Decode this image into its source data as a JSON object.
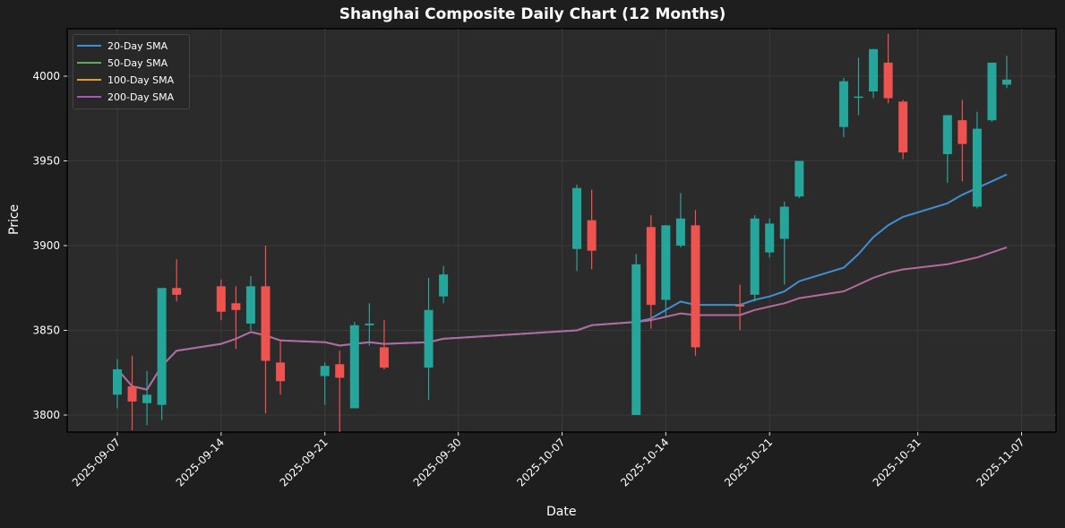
{
  "title": "Shanghai Composite Daily Chart (12 Months)",
  "axes": {
    "xlabel": "Date",
    "ylabel": "Price"
  },
  "legend": [
    {
      "label": "20-Day SMA",
      "color": "#3f8fd2"
    },
    {
      "label": "50-Day SMA",
      "color": "#5cab5f"
    },
    {
      "label": "100-Day SMA",
      "color": "#e59a2f"
    },
    {
      "label": "200-Day SMA",
      "color": "#a855c0"
    }
  ],
  "colors": {
    "up": "#26a69a",
    "down": "#ef5350",
    "background": "#1e1e1e",
    "plot_bg": "#2b2b2b",
    "grid": "#3a3a3a",
    "sma_overlap": "#b56a9e"
  },
  "chart_data": {
    "type": "candlestick",
    "title": "Shanghai Composite Daily Chart (12 Months)",
    "xlabel": "Date",
    "ylabel": "Price",
    "ylim": [
      3790,
      4026
    ],
    "xlim": [
      "2025-09-04",
      "2025-11-09"
    ],
    "yticks": [
      3800,
      3850,
      3900,
      3950,
      4000
    ],
    "xticks": [
      "2025-09-07",
      "2025-09-14",
      "2025-09-21",
      "2025-09-30",
      "2025-10-07",
      "2025-10-14",
      "2025-10-21",
      "2025-10-31",
      "2025-11-07"
    ],
    "grid": true,
    "legend_position": "upper left",
    "candles": [
      {
        "date": "2025-09-07",
        "open": 3812,
        "high": 3833,
        "low": 3804,
        "close": 3827
      },
      {
        "date": "2025-09-08",
        "open": 3817,
        "high": 3835,
        "low": 3791,
        "close": 3808
      },
      {
        "date": "2025-09-09",
        "open": 3807,
        "high": 3826,
        "low": 3794,
        "close": 3812
      },
      {
        "date": "2025-09-10",
        "open": 3806,
        "high": 3812,
        "low": 3797,
        "close": 3875
      },
      {
        "date": "2025-09-11",
        "open": 3875,
        "high": 3892,
        "low": 3867,
        "close": 3871
      },
      {
        "date": "2025-09-14",
        "open": 3876,
        "high": 3880,
        "low": 3856,
        "close": 3861
      },
      {
        "date": "2025-09-15",
        "open": 3866,
        "high": 3876,
        "low": 3839,
        "close": 3862
      },
      {
        "date": "2025-09-16",
        "open": 3854,
        "high": 3882,
        "low": 3850,
        "close": 3876
      },
      {
        "date": "2025-09-17",
        "open": 3876,
        "high": 3900,
        "low": 3801,
        "close": 3832
      },
      {
        "date": "2025-09-18",
        "open": 3831,
        "high": 3844,
        "low": 3812,
        "close": 3820
      },
      {
        "date": "2025-09-21",
        "open": 3823,
        "high": 3831,
        "low": 3806,
        "close": 3829
      },
      {
        "date": "2025-09-22",
        "open": 3830,
        "high": 3838,
        "low": 3790,
        "close": 3822
      },
      {
        "date": "2025-09-23",
        "open": 3804,
        "high": 3855,
        "low": 3804,
        "close": 3853
      },
      {
        "date": "2025-09-24",
        "open": 3853,
        "high": 3866,
        "low": 3841,
        "close": 3854
      },
      {
        "date": "2025-09-25",
        "open": 3840,
        "high": 3856,
        "low": 3827,
        "close": 3828
      },
      {
        "date": "2025-09-28",
        "open": 3828,
        "high": 3881,
        "low": 3809,
        "close": 3862
      },
      {
        "date": "2025-09-29",
        "open": 3870,
        "high": 3888,
        "low": 3866,
        "close": 3883
      },
      {
        "date": "2025-10-08",
        "open": 3898,
        "high": 3936,
        "low": 3885,
        "close": 3934
      },
      {
        "date": "2025-10-09",
        "open": 3915,
        "high": 3933,
        "low": 3886,
        "close": 3897
      },
      {
        "date": "2025-10-12",
        "open": 3800,
        "high": 3895,
        "low": 3800,
        "close": 3889
      },
      {
        "date": "2025-10-13",
        "open": 3911,
        "high": 3918,
        "low": 3851,
        "close": 3865
      },
      {
        "date": "2025-10-14",
        "open": 3868,
        "high": 3912,
        "low": 3858,
        "close": 3912
      },
      {
        "date": "2025-10-15",
        "open": 3900,
        "high": 3931,
        "low": 3899,
        "close": 3916
      },
      {
        "date": "2025-10-16",
        "open": 3912,
        "high": 3921,
        "low": 3835,
        "close": 3840
      },
      {
        "date": "2025-10-19",
        "open": 3865,
        "high": 3877,
        "low": 3850,
        "close": 3864
      },
      {
        "date": "2025-10-20",
        "open": 3871,
        "high": 3918,
        "low": 3867,
        "close": 3916
      },
      {
        "date": "2025-10-21",
        "open": 3896,
        "high": 3916,
        "low": 3893,
        "close": 3913
      },
      {
        "date": "2025-10-22",
        "open": 3904,
        "high": 3926,
        "low": 3877,
        "close": 3923
      },
      {
        "date": "2025-10-23",
        "open": 3929,
        "high": 3950,
        "low": 3928,
        "close": 3950
      },
      {
        "date": "2025-10-26",
        "open": 3970,
        "high": 3999,
        "low": 3964,
        "close": 3997
      },
      {
        "date": "2025-10-27",
        "open": 3988,
        "high": 4011,
        "low": 3977,
        "close": 3988
      },
      {
        "date": "2025-10-28",
        "open": 3991,
        "high": 4016,
        "low": 3987,
        "close": 4016
      },
      {
        "date": "2025-10-29",
        "open": 4008,
        "high": 4025,
        "low": 3984,
        "close": 3987
      },
      {
        "date": "2025-10-30",
        "open": 3985,
        "high": 3986,
        "low": 3951,
        "close": 3955
      },
      {
        "date": "2025-11-02",
        "open": 3954,
        "high": 3977,
        "low": 3937,
        "close": 3977
      },
      {
        "date": "2025-11-03",
        "open": 3974,
        "high": 3986,
        "low": 3938,
        "close": 3960
      },
      {
        "date": "2025-11-04",
        "open": 3923,
        "high": 3979,
        "low": 3922,
        "close": 3969
      },
      {
        "date": "2025-11-05",
        "open": 3974,
        "high": 4008,
        "low": 3973,
        "close": 4008
      },
      {
        "date": "2025-11-06",
        "open": 3995,
        "high": 4012,
        "low": 3993,
        "close": 3998
      }
    ],
    "series": [
      {
        "name": "20-Day SMA",
        "color": "#3f8fd2",
        "points": [
          [
            "2025-09-07",
            3827
          ],
          [
            "2025-09-08",
            3817
          ],
          [
            "2025-09-09",
            3815
          ],
          [
            "2025-09-10",
            3829
          ],
          [
            "2025-09-11",
            3838
          ],
          [
            "2025-09-14",
            3842
          ],
          [
            "2025-09-15",
            3845
          ],
          [
            "2025-09-16",
            3849
          ],
          [
            "2025-09-17",
            3847
          ],
          [
            "2025-09-18",
            3844
          ],
          [
            "2025-09-21",
            3843
          ],
          [
            "2025-09-22",
            3841
          ],
          [
            "2025-09-23",
            3842
          ],
          [
            "2025-09-24",
            3843
          ],
          [
            "2025-09-25",
            3842
          ],
          [
            "2025-09-28",
            3843
          ],
          [
            "2025-09-29",
            3845
          ],
          [
            "2025-10-08",
            3850
          ],
          [
            "2025-10-09",
            3853
          ],
          [
            "2025-10-12",
            3855
          ],
          [
            "2025-10-13",
            3857
          ],
          [
            "2025-10-14",
            3862
          ],
          [
            "2025-10-15",
            3867
          ],
          [
            "2025-10-16",
            3865
          ],
          [
            "2025-10-19",
            3865
          ],
          [
            "2025-10-20",
            3868
          ],
          [
            "2025-10-21",
            3870
          ],
          [
            "2025-10-22",
            3873
          ],
          [
            "2025-10-23",
            3879
          ],
          [
            "2025-10-26",
            3887
          ],
          [
            "2025-10-27",
            3895
          ],
          [
            "2025-10-28",
            3905
          ],
          [
            "2025-10-29",
            3912
          ],
          [
            "2025-10-30",
            3917
          ],
          [
            "2025-11-02",
            3925
          ],
          [
            "2025-11-03",
            3930
          ],
          [
            "2025-11-04",
            3934
          ],
          [
            "2025-11-05",
            3938
          ],
          [
            "2025-11-06",
            3942
          ]
        ]
      },
      {
        "name": "200-Day SMA",
        "color": "#b56a9e",
        "points": [
          [
            "2025-09-07",
            3827
          ],
          [
            "2025-09-08",
            3817
          ],
          [
            "2025-09-09",
            3815
          ],
          [
            "2025-09-10",
            3829
          ],
          [
            "2025-09-11",
            3838
          ],
          [
            "2025-09-14",
            3842
          ],
          [
            "2025-09-15",
            3845
          ],
          [
            "2025-09-16",
            3849
          ],
          [
            "2025-09-17",
            3847
          ],
          [
            "2025-09-18",
            3844
          ],
          [
            "2025-09-21",
            3843
          ],
          [
            "2025-09-22",
            3841
          ],
          [
            "2025-09-23",
            3842
          ],
          [
            "2025-09-24",
            3843
          ],
          [
            "2025-09-25",
            3842
          ],
          [
            "2025-09-28",
            3843
          ],
          [
            "2025-09-29",
            3845
          ],
          [
            "2025-10-08",
            3850
          ],
          [
            "2025-10-09",
            3853
          ],
          [
            "2025-10-12",
            3855
          ],
          [
            "2025-10-13",
            3856
          ],
          [
            "2025-10-14",
            3858
          ],
          [
            "2025-10-15",
            3860
          ],
          [
            "2025-10-16",
            3859
          ],
          [
            "2025-10-19",
            3859
          ],
          [
            "2025-10-20",
            3862
          ],
          [
            "2025-10-21",
            3864
          ],
          [
            "2025-10-22",
            3866
          ],
          [
            "2025-10-23",
            3869
          ],
          [
            "2025-10-26",
            3873
          ],
          [
            "2025-10-27",
            3877
          ],
          [
            "2025-10-28",
            3881
          ],
          [
            "2025-10-29",
            3884
          ],
          [
            "2025-10-30",
            3886
          ],
          [
            "2025-11-02",
            3889
          ],
          [
            "2025-11-03",
            3891
          ],
          [
            "2025-11-04",
            3893
          ],
          [
            "2025-11-05",
            3896
          ],
          [
            "2025-11-06",
            3899
          ]
        ]
      }
    ]
  }
}
